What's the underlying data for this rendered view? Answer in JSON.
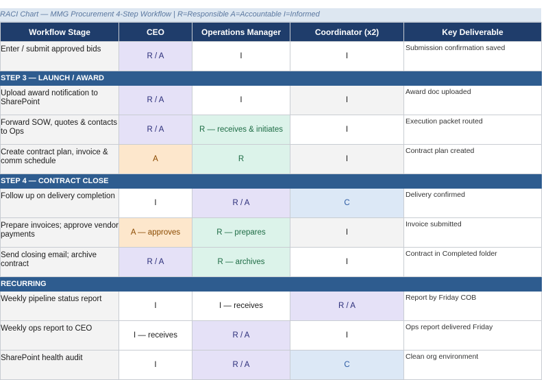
{
  "title": "RACI Chart — MMG Procurement 4-Step Workflow  |  R=Responsible  A=Accountable  I=Informed",
  "columns": [
    "Workflow Stage",
    "CEO",
    "Operations Manager",
    "Coordinator (x2)",
    "Key Deliverable"
  ],
  "rows": [
    {
      "type": "row",
      "stage": "Enter / submit approved bids",
      "ceo": "R / A",
      "ceo_style": "purple",
      "ops": "I",
      "ops_style": "white",
      "coord": "I",
      "coord_style": "white",
      "deliverable": "Submission confirmation saved"
    },
    {
      "type": "section",
      "label": "STEP 3 — LAUNCH / AWARD"
    },
    {
      "type": "row",
      "stage": "Upload award notification to SharePoint",
      "ceo": "R / A",
      "ceo_style": "purple",
      "ops": "I",
      "ops_style": "white",
      "coord": "I",
      "coord_style": "gray",
      "deliverable": "Award doc uploaded"
    },
    {
      "type": "row",
      "stage": "Forward SOW, quotes & contacts to Ops",
      "ceo": "R / A",
      "ceo_style": "purple",
      "ops": "R — receives & initiates",
      "ops_style": "green",
      "coord": "I",
      "coord_style": "white",
      "deliverable": "Execution packet routed"
    },
    {
      "type": "row",
      "stage": "Create contract plan, invoice & comm schedule",
      "ceo": "A",
      "ceo_style": "orange",
      "ops": "R",
      "ops_style": "green",
      "coord": "I",
      "coord_style": "gray",
      "deliverable": "Contract plan created"
    },
    {
      "type": "section",
      "label": "STEP 4 — CONTRACT CLOSE"
    },
    {
      "type": "row",
      "stage": "Follow up on delivery completion",
      "ceo": "I",
      "ceo_style": "white",
      "ops": "R / A",
      "ops_style": "purple",
      "coord": "C",
      "coord_style": "blue",
      "deliverable": "Delivery confirmed"
    },
    {
      "type": "row",
      "stage": "Prepare invoices; approve vendor payments",
      "ceo": "A — approves",
      "ceo_style": "orange",
      "ops": "R — prepares",
      "ops_style": "green",
      "coord": "I",
      "coord_style": "gray",
      "deliverable": "Invoice submitted"
    },
    {
      "type": "row",
      "stage": "Send closing email; archive contract",
      "ceo": "R / A",
      "ceo_style": "purple",
      "ops": "R — archives",
      "ops_style": "green",
      "coord": "I",
      "coord_style": "white",
      "deliverable": "Contract in Completed folder"
    },
    {
      "type": "section",
      "label": "RECURRING"
    },
    {
      "type": "row",
      "stage": "Weekly pipeline status report",
      "ceo": "I",
      "ceo_style": "white",
      "ops": "I — receives",
      "ops_style": "white",
      "coord": "R / A",
      "coord_style": "purple",
      "deliverable": "Report by Friday COB"
    },
    {
      "type": "row",
      "stage": "Weekly ops report to CEO",
      "ceo": "I — receives",
      "ceo_style": "white",
      "ops": "R / A",
      "ops_style": "purple",
      "coord": "I",
      "coord_style": "white",
      "deliverable": "Ops report delivered Friday"
    },
    {
      "type": "row",
      "stage": "SharePoint health audit",
      "ceo": "I",
      "ceo_style": "white",
      "ops": "R / A",
      "ops_style": "purple",
      "coord": "C",
      "coord_style": "blue",
      "deliverable": "Clean org environment"
    }
  ]
}
